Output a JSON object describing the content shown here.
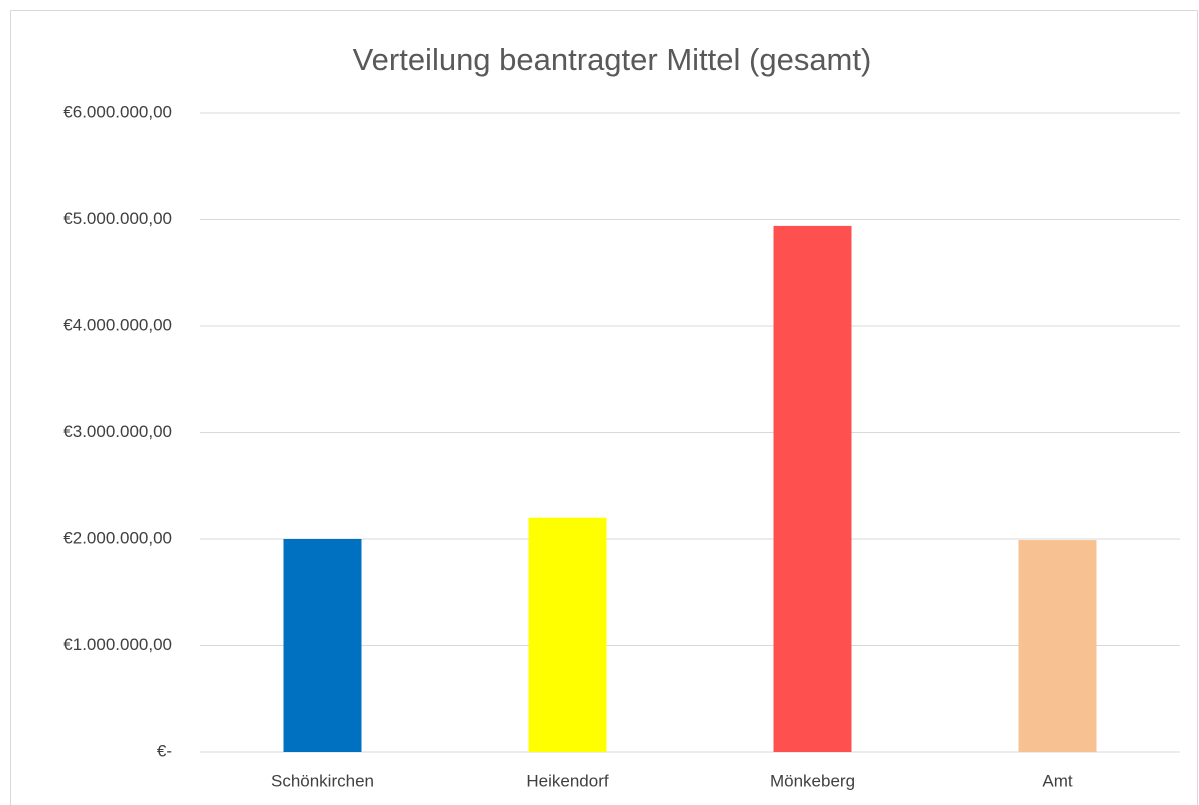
{
  "chart_data": {
    "type": "bar",
    "title": "Verteilung beantragter Mittel (gesamt)",
    "categories": [
      "Schönkirchen",
      "Heikendorf",
      "Mönkeberg",
      "Amt"
    ],
    "values": [
      2000000,
      2200000,
      4940000,
      1990000
    ],
    "colors": [
      "#0070c0",
      "#ffff00",
      "#ff5050",
      "#f8c192"
    ],
    "ylim": [
      0,
      6000000
    ],
    "yticks": [
      {
        "value": 0,
        "label": "€-"
      },
      {
        "value": 1000000,
        "label": "€1.000.000,00"
      },
      {
        "value": 2000000,
        "label": "€2.000.000,00"
      },
      {
        "value": 3000000,
        "label": "€3.000.000,00"
      },
      {
        "value": 4000000,
        "label": "€4.000.000,00"
      },
      {
        "value": 5000000,
        "label": "€5.000.000,00"
      },
      {
        "value": 6000000,
        "label": "€6.000.000,00"
      }
    ],
    "grid": true
  }
}
